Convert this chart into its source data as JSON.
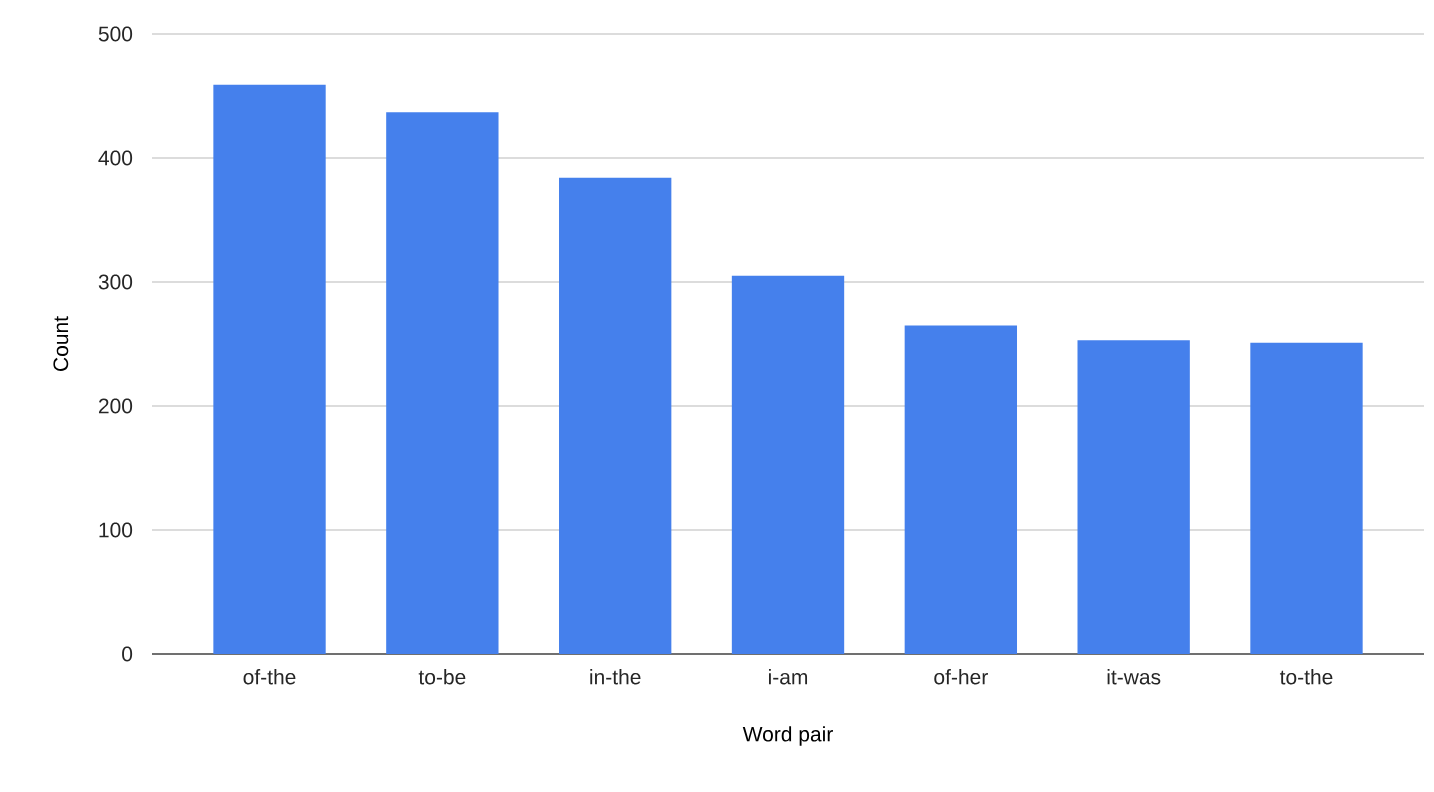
{
  "chart_data": {
    "type": "bar",
    "xlabel": "Word pair",
    "ylabel": "Count",
    "categories": [
      "of-the",
      "to-be",
      "in-the",
      "i-am",
      "of-her",
      "it-was",
      "to-the"
    ],
    "values": [
      459,
      437,
      384,
      305,
      265,
      253,
      251
    ],
    "color": "#4580ec",
    "ylim": [
      0,
      500
    ],
    "yticks": [
      0,
      100,
      200,
      300,
      400,
      500
    ],
    "grid": "y"
  }
}
